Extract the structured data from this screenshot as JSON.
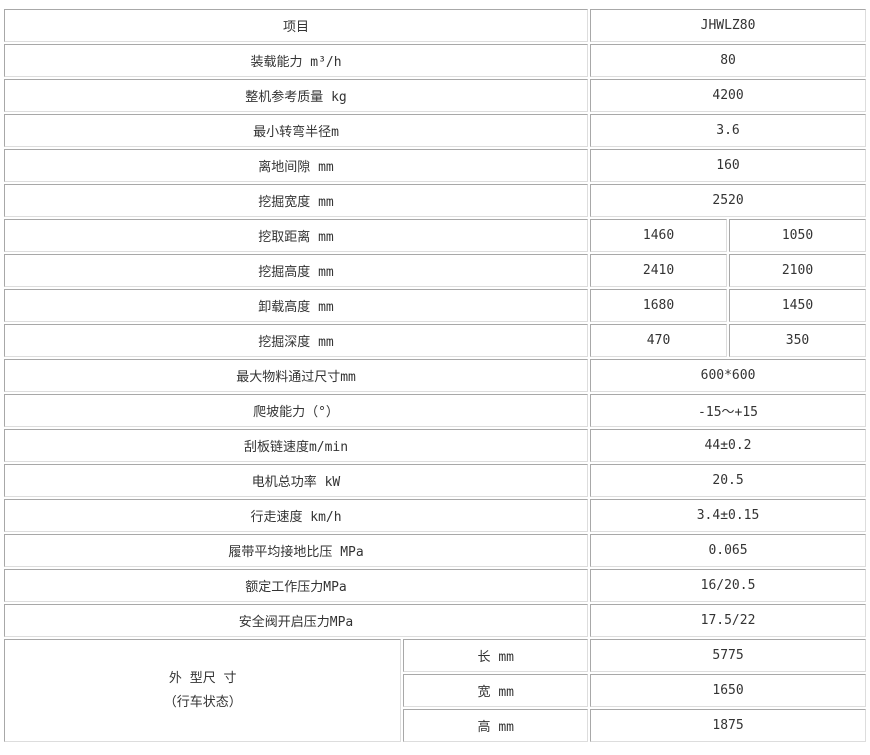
{
  "table": {
    "rows": [
      {
        "label": "项目",
        "values": [
          "JHWLZ80"
        ]
      },
      {
        "label": "装载能力 m³/h",
        "values": [
          "80"
        ]
      },
      {
        "label": "整机参考质量 kg",
        "values": [
          "4200"
        ]
      },
      {
        "label": "最小转弯半径m",
        "values": [
          "3.6"
        ]
      },
      {
        "label": "离地间隙 mm",
        "values": [
          "160"
        ]
      },
      {
        "label": "挖掘宽度 mm",
        "values": [
          "2520"
        ]
      },
      {
        "label": "挖取距离 mm",
        "values": [
          "1460",
          "1050"
        ]
      },
      {
        "label": "挖掘高度 mm",
        "values": [
          "2410",
          "2100"
        ]
      },
      {
        "label": "卸载高度 mm",
        "values": [
          "1680",
          "1450"
        ]
      },
      {
        "label": "挖掘深度 mm",
        "values": [
          "470",
          "350"
        ]
      },
      {
        "label": "最大物料通过尺寸mm",
        "values": [
          "600*600"
        ]
      },
      {
        "label": "爬坡能力（°）",
        "values": [
          "-15～+15"
        ]
      },
      {
        "label": "刮板链速度m/min",
        "values": [
          "44±0.2"
        ]
      },
      {
        "label": "电机总功率 kW",
        "values": [
          "20.5"
        ]
      },
      {
        "label": "行走速度 km/h",
        "values": [
          "3.4±0.15"
        ]
      },
      {
        "label": "履带平均接地比压 MPa",
        "values": [
          "0.065"
        ]
      },
      {
        "label": "额定工作压力MPa",
        "values": [
          "16/20.5"
        ]
      },
      {
        "label": "安全阀开启压力MPa",
        "values": [
          "17.5/22"
        ]
      }
    ],
    "dimensions": {
      "label_line1": "外 型尺 寸",
      "label_line2": "（行车状态）",
      "items": [
        {
          "label": "长 mm",
          "value": "5775"
        },
        {
          "label": "宽 mm",
          "value": "1650"
        },
        {
          "label": "高 mm",
          "value": "1875"
        }
      ]
    }
  }
}
